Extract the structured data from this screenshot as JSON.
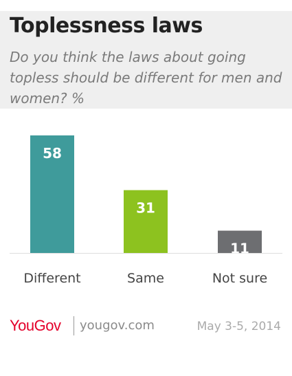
{
  "header": {
    "title": "Toplessness laws",
    "subtitle": "Do you think the laws about going topless should be different for men and women? %"
  },
  "chart_data": {
    "type": "bar",
    "categories": [
      "Different",
      "Same",
      "Not sure"
    ],
    "values": [
      58,
      31,
      11
    ],
    "colors": [
      "#3f9b9b",
      "#8dc21f",
      "#6d6e71"
    ],
    "ylim": [
      0,
      58
    ],
    "grid": false,
    "legend": "none"
  },
  "footer": {
    "logo": "YouGov",
    "url": "yougov.com",
    "date": "May 3-5, 2014"
  },
  "colors": {
    "header_bg": "#efefef",
    "brand": "#e4002b",
    "baseline": "#dddddd"
  }
}
